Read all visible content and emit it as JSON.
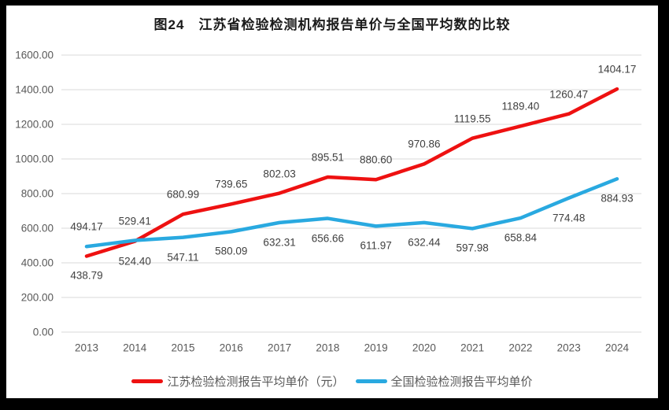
{
  "title": "图24　江苏省检验检测机构报告单价与全国平均数的比较",
  "frame": {
    "border_color": "#000000",
    "background_color": "#ffffff"
  },
  "colors": {
    "gridline": "#d9d9d9",
    "axis_tick_label": "#595959",
    "data_label": "#404040",
    "legend_text": "#595959",
    "title_text": "#1a1a1a"
  },
  "chart_data": {
    "type": "line",
    "title": "图24　江苏省检验检测机构报告单价与全国平均数的比较",
    "categories": [
      "2013",
      "2014",
      "2015",
      "2016",
      "2017",
      "2018",
      "2019",
      "2020",
      "2021",
      "2022",
      "2023",
      "2024"
    ],
    "series": [
      {
        "name": "江苏检验检测报告平均单价（元）",
        "color": "#ee1111",
        "values": [
          438.79,
          524.4,
          680.99,
          739.65,
          802.03,
          895.51,
          880.6,
          970.86,
          1119.55,
          1189.4,
          1260.47,
          1404.17
        ],
        "label_sides": [
          "below",
          "below",
          "above",
          "above",
          "above",
          "above",
          "above",
          "above",
          "above",
          "above",
          "above",
          "above"
        ]
      },
      {
        "name": "全国检验检测报告平均单价",
        "color": "#29a9e0",
        "values": [
          494.17,
          529.41,
          547.11,
          580.09,
          632.31,
          656.66,
          611.97,
          632.44,
          597.98,
          658.84,
          774.48,
          884.93
        ],
        "label_sides": [
          "above",
          "above",
          "below",
          "below",
          "below",
          "below",
          "below",
          "below",
          "below",
          "below",
          "below",
          "below"
        ]
      }
    ],
    "xlabel": "",
    "ylabel": "",
    "ylim": [
      0,
      1600
    ],
    "ytick_step": 200,
    "value_label_decimals": 2,
    "grid": "horizontal",
    "legend_position": "bottom",
    "data_labels_visible": true
  }
}
